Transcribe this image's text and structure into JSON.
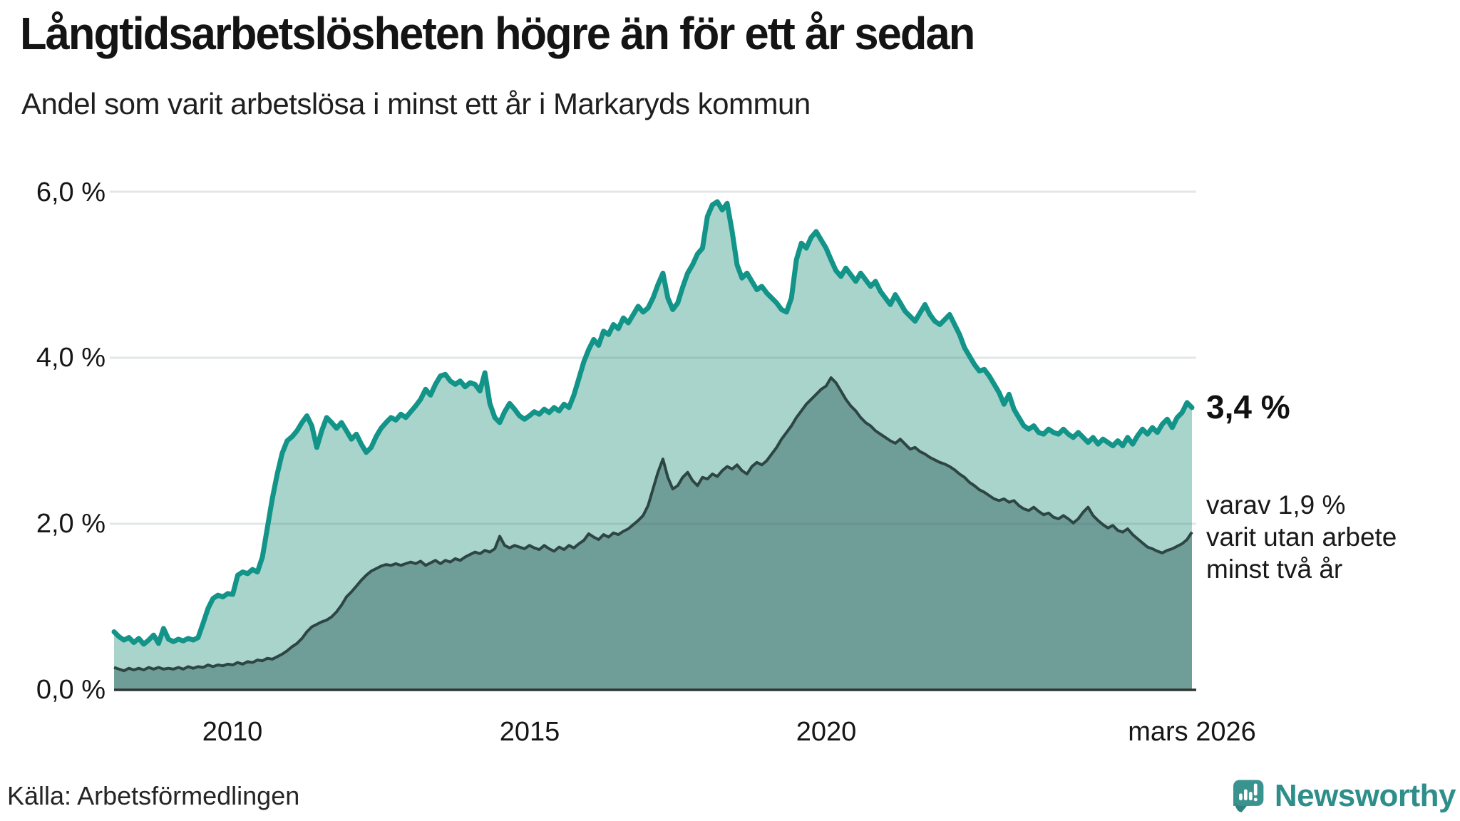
{
  "header": {
    "title": "Långtidsarbetslösheten högre än för ett år sedan",
    "subtitle": "Andel som varit arbetslösa i minst ett år i Markaryds kommun"
  },
  "annotations": {
    "latest_value": "3,4 %",
    "secondary_line1": "varav 1,9 %",
    "secondary_line2": "varit utan arbete",
    "secondary_line3": "minst två år"
  },
  "footer": {
    "source": "Källa: Arbetsförmedlingen",
    "logo_text": "Newsworthy"
  },
  "colors": {
    "line_total": "#129488",
    "fill_total": "#a9d4cc",
    "line_two_years": "#2d4644",
    "fill_two_years": "#6f9d98",
    "gridline": "rgba(75,105,105,0.16)",
    "baseline": "#2f3533",
    "logo_teal": "#39938f",
    "logo_tail": "#2f827e",
    "text": "#141414"
  },
  "chart_data": {
    "type": "area",
    "title": "Långtidsarbetslösheten högre än för ett år sedan",
    "subtitle": "Andel som varit arbetslösa i minst ett år i Markaryds kommun",
    "x_start": "2008-01",
    "x_end": "2026-03",
    "x_frequency": "monthly",
    "ylim": [
      0,
      6.2
    ],
    "grid": "horizontal",
    "legend_position": "none",
    "y_ticks": [
      {
        "value": 6,
        "label": "6,0 %"
      },
      {
        "value": 4,
        "label": "4,0 %"
      },
      {
        "value": 2,
        "label": "2,0 %"
      },
      {
        "value": 0,
        "label": "0,0 %"
      }
    ],
    "x_ticks": [
      {
        "label": "2010",
        "index": 24
      },
      {
        "label": "2015",
        "index": 84
      },
      {
        "label": "2020",
        "index": 144
      },
      {
        "label": "mars 2026",
        "index": 218
      }
    ],
    "series": [
      {
        "name": "Andel arbetslösa minst ett år",
        "latest_value_pct": 3.4,
        "values": [
          0.7,
          0.64,
          0.6,
          0.63,
          0.57,
          0.62,
          0.55,
          0.6,
          0.66,
          0.56,
          0.74,
          0.61,
          0.58,
          0.61,
          0.59,
          0.62,
          0.6,
          0.63,
          0.8,
          0.98,
          1.1,
          1.14,
          1.12,
          1.16,
          1.15,
          1.38,
          1.42,
          1.4,
          1.45,
          1.42,
          1.6,
          1.95,
          2.3,
          2.6,
          2.85,
          3.0,
          3.05,
          3.12,
          3.22,
          3.3,
          3.18,
          2.92,
          3.12,
          3.28,
          3.22,
          3.15,
          3.22,
          3.12,
          3.02,
          3.08,
          2.96,
          2.86,
          2.92,
          3.05,
          3.15,
          3.22,
          3.28,
          3.25,
          3.32,
          3.28,
          3.35,
          3.42,
          3.5,
          3.62,
          3.55,
          3.68,
          3.78,
          3.8,
          3.72,
          3.68,
          3.72,
          3.65,
          3.7,
          3.68,
          3.6,
          3.82,
          3.45,
          3.28,
          3.22,
          3.35,
          3.45,
          3.38,
          3.3,
          3.26,
          3.3,
          3.35,
          3.32,
          3.38,
          3.34,
          3.4,
          3.36,
          3.44,
          3.4,
          3.55,
          3.75,
          3.95,
          4.1,
          4.22,
          4.15,
          4.32,
          4.28,
          4.4,
          4.35,
          4.48,
          4.42,
          4.52,
          4.62,
          4.55,
          4.6,
          4.72,
          4.88,
          5.02,
          4.72,
          4.58,
          4.66,
          4.85,
          5.02,
          5.12,
          5.25,
          5.32,
          5.7,
          5.84,
          5.88,
          5.78,
          5.86,
          5.52,
          5.12,
          4.96,
          5.02,
          4.92,
          4.82,
          4.86,
          4.78,
          4.72,
          4.66,
          4.58,
          4.55,
          4.72,
          5.18,
          5.38,
          5.32,
          5.45,
          5.52,
          5.42,
          5.32,
          5.18,
          5.05,
          4.98,
          5.08,
          5.0,
          4.92,
          5.02,
          4.94,
          4.86,
          4.92,
          4.8,
          4.72,
          4.64,
          4.76,
          4.66,
          4.56,
          4.5,
          4.44,
          4.54,
          4.64,
          4.52,
          4.44,
          4.4,
          4.46,
          4.52,
          4.4,
          4.28,
          4.12,
          4.02,
          3.92,
          3.84,
          3.86,
          3.78,
          3.68,
          3.58,
          3.44,
          3.56,
          3.38,
          3.28,
          3.18,
          3.14,
          3.18,
          3.1,
          3.08,
          3.14,
          3.1,
          3.08,
          3.14,
          3.08,
          3.04,
          3.1,
          3.04,
          2.98,
          3.04,
          2.96,
          3.02,
          2.98,
          2.94,
          3.0,
          2.94,
          3.04,
          2.96,
          3.06,
          3.14,
          3.08,
          3.16,
          3.1,
          3.2,
          3.26,
          3.16,
          3.28,
          3.34,
          3.46,
          3.4
        ]
      },
      {
        "name": "Andel arbetslösa minst två år",
        "latest_value_pct": 1.9,
        "values": [
          0.27,
          0.25,
          0.23,
          0.26,
          0.24,
          0.26,
          0.24,
          0.27,
          0.25,
          0.27,
          0.25,
          0.26,
          0.25,
          0.27,
          0.25,
          0.28,
          0.26,
          0.28,
          0.27,
          0.3,
          0.28,
          0.3,
          0.29,
          0.31,
          0.3,
          0.33,
          0.31,
          0.34,
          0.33,
          0.36,
          0.35,
          0.38,
          0.37,
          0.4,
          0.43,
          0.47,
          0.52,
          0.56,
          0.62,
          0.7,
          0.76,
          0.79,
          0.82,
          0.84,
          0.88,
          0.94,
          1.02,
          1.12,
          1.18,
          1.25,
          1.32,
          1.38,
          1.43,
          1.46,
          1.49,
          1.51,
          1.5,
          1.52,
          1.5,
          1.52,
          1.54,
          1.52,
          1.55,
          1.5,
          1.53,
          1.56,
          1.52,
          1.56,
          1.54,
          1.58,
          1.56,
          1.6,
          1.63,
          1.66,
          1.64,
          1.68,
          1.66,
          1.7,
          1.85,
          1.74,
          1.71,
          1.74,
          1.72,
          1.7,
          1.74,
          1.71,
          1.69,
          1.74,
          1.7,
          1.67,
          1.72,
          1.69,
          1.74,
          1.71,
          1.76,
          1.8,
          1.88,
          1.84,
          1.81,
          1.87,
          1.84,
          1.89,
          1.87,
          1.91,
          1.94,
          1.99,
          2.04,
          2.1,
          2.22,
          2.42,
          2.62,
          2.78,
          2.56,
          2.42,
          2.46,
          2.56,
          2.62,
          2.52,
          2.46,
          2.56,
          2.54,
          2.6,
          2.57,
          2.64,
          2.69,
          2.66,
          2.71,
          2.64,
          2.6,
          2.69,
          2.74,
          2.71,
          2.76,
          2.84,
          2.92,
          3.02,
          3.1,
          3.18,
          3.28,
          3.36,
          3.44,
          3.5,
          3.56,
          3.62,
          3.66,
          3.76,
          3.7,
          3.6,
          3.5,
          3.42,
          3.36,
          3.28,
          3.22,
          3.18,
          3.12,
          3.08,
          3.04,
          3.0,
          2.97,
          3.02,
          2.96,
          2.9,
          2.92,
          2.87,
          2.84,
          2.8,
          2.77,
          2.74,
          2.72,
          2.69,
          2.65,
          2.6,
          2.56,
          2.5,
          2.46,
          2.41,
          2.38,
          2.34,
          2.3,
          2.28,
          2.3,
          2.26,
          2.28,
          2.22,
          2.18,
          2.16,
          2.2,
          2.15,
          2.11,
          2.13,
          2.08,
          2.06,
          2.1,
          2.06,
          2.01,
          2.06,
          2.14,
          2.2,
          2.1,
          2.04,
          1.99,
          1.95,
          1.98,
          1.92,
          1.9,
          1.94,
          1.87,
          1.82,
          1.77,
          1.72,
          1.7,
          1.67,
          1.65,
          1.68,
          1.7,
          1.73,
          1.76,
          1.81,
          1.9
        ]
      }
    ]
  }
}
